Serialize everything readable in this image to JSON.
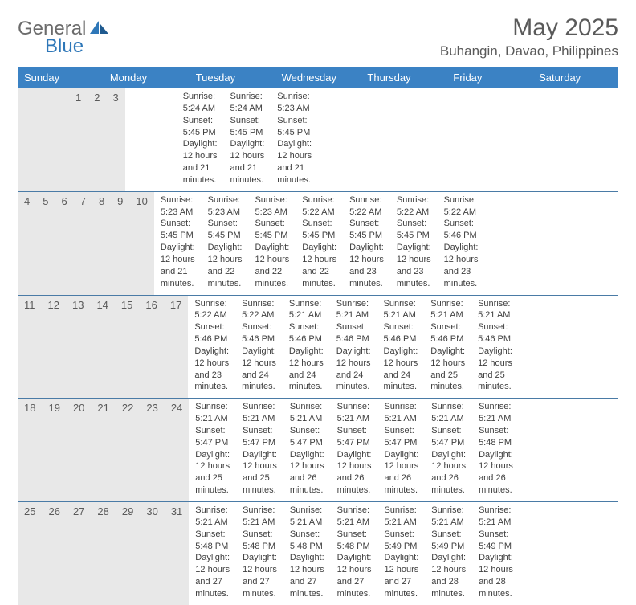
{
  "logo": {
    "text1": "General",
    "text2": "Blue"
  },
  "title": "May 2025",
  "location": "Buhangin, Davao, Philippines",
  "colors": {
    "header_bg": "#3b82c4",
    "daynum_bg": "#e8e8e8",
    "week_border": "#4a7ba6",
    "logo_blue": "#2e77b8",
    "logo_gray": "#6b6b6b",
    "text": "#404040"
  },
  "daynames": [
    "Sunday",
    "Monday",
    "Tuesday",
    "Wednesday",
    "Thursday",
    "Friday",
    "Saturday"
  ],
  "weeks": [
    {
      "nums": [
        "",
        "",
        "",
        "",
        "1",
        "2",
        "3"
      ],
      "cells": [
        null,
        null,
        null,
        null,
        {
          "sunrise": "Sunrise: 5:24 AM",
          "sunset": "Sunset: 5:45 PM",
          "day1": "Daylight: 12 hours",
          "day2": "and 21 minutes."
        },
        {
          "sunrise": "Sunrise: 5:24 AM",
          "sunset": "Sunset: 5:45 PM",
          "day1": "Daylight: 12 hours",
          "day2": "and 21 minutes."
        },
        {
          "sunrise": "Sunrise: 5:23 AM",
          "sunset": "Sunset: 5:45 PM",
          "day1": "Daylight: 12 hours",
          "day2": "and 21 minutes."
        }
      ]
    },
    {
      "nums": [
        "4",
        "5",
        "6",
        "7",
        "8",
        "9",
        "10"
      ],
      "cells": [
        {
          "sunrise": "Sunrise: 5:23 AM",
          "sunset": "Sunset: 5:45 PM",
          "day1": "Daylight: 12 hours",
          "day2": "and 21 minutes."
        },
        {
          "sunrise": "Sunrise: 5:23 AM",
          "sunset": "Sunset: 5:45 PM",
          "day1": "Daylight: 12 hours",
          "day2": "and 22 minutes."
        },
        {
          "sunrise": "Sunrise: 5:23 AM",
          "sunset": "Sunset: 5:45 PM",
          "day1": "Daylight: 12 hours",
          "day2": "and 22 minutes."
        },
        {
          "sunrise": "Sunrise: 5:22 AM",
          "sunset": "Sunset: 5:45 PM",
          "day1": "Daylight: 12 hours",
          "day2": "and 22 minutes."
        },
        {
          "sunrise": "Sunrise: 5:22 AM",
          "sunset": "Sunset: 5:45 PM",
          "day1": "Daylight: 12 hours",
          "day2": "and 23 minutes."
        },
        {
          "sunrise": "Sunrise: 5:22 AM",
          "sunset": "Sunset: 5:45 PM",
          "day1": "Daylight: 12 hours",
          "day2": "and 23 minutes."
        },
        {
          "sunrise": "Sunrise: 5:22 AM",
          "sunset": "Sunset: 5:46 PM",
          "day1": "Daylight: 12 hours",
          "day2": "and 23 minutes."
        }
      ]
    },
    {
      "nums": [
        "11",
        "12",
        "13",
        "14",
        "15",
        "16",
        "17"
      ],
      "cells": [
        {
          "sunrise": "Sunrise: 5:22 AM",
          "sunset": "Sunset: 5:46 PM",
          "day1": "Daylight: 12 hours",
          "day2": "and 23 minutes."
        },
        {
          "sunrise": "Sunrise: 5:22 AM",
          "sunset": "Sunset: 5:46 PM",
          "day1": "Daylight: 12 hours",
          "day2": "and 24 minutes."
        },
        {
          "sunrise": "Sunrise: 5:21 AM",
          "sunset": "Sunset: 5:46 PM",
          "day1": "Daylight: 12 hours",
          "day2": "and 24 minutes."
        },
        {
          "sunrise": "Sunrise: 5:21 AM",
          "sunset": "Sunset: 5:46 PM",
          "day1": "Daylight: 12 hours",
          "day2": "and 24 minutes."
        },
        {
          "sunrise": "Sunrise: 5:21 AM",
          "sunset": "Sunset: 5:46 PM",
          "day1": "Daylight: 12 hours",
          "day2": "and 24 minutes."
        },
        {
          "sunrise": "Sunrise: 5:21 AM",
          "sunset": "Sunset: 5:46 PM",
          "day1": "Daylight: 12 hours",
          "day2": "and 25 minutes."
        },
        {
          "sunrise": "Sunrise: 5:21 AM",
          "sunset": "Sunset: 5:46 PM",
          "day1": "Daylight: 12 hours",
          "day2": "and 25 minutes."
        }
      ]
    },
    {
      "nums": [
        "18",
        "19",
        "20",
        "21",
        "22",
        "23",
        "24"
      ],
      "cells": [
        {
          "sunrise": "Sunrise: 5:21 AM",
          "sunset": "Sunset: 5:47 PM",
          "day1": "Daylight: 12 hours",
          "day2": "and 25 minutes."
        },
        {
          "sunrise": "Sunrise: 5:21 AM",
          "sunset": "Sunset: 5:47 PM",
          "day1": "Daylight: 12 hours",
          "day2": "and 25 minutes."
        },
        {
          "sunrise": "Sunrise: 5:21 AM",
          "sunset": "Sunset: 5:47 PM",
          "day1": "Daylight: 12 hours",
          "day2": "and 26 minutes."
        },
        {
          "sunrise": "Sunrise: 5:21 AM",
          "sunset": "Sunset: 5:47 PM",
          "day1": "Daylight: 12 hours",
          "day2": "and 26 minutes."
        },
        {
          "sunrise": "Sunrise: 5:21 AM",
          "sunset": "Sunset: 5:47 PM",
          "day1": "Daylight: 12 hours",
          "day2": "and 26 minutes."
        },
        {
          "sunrise": "Sunrise: 5:21 AM",
          "sunset": "Sunset: 5:47 PM",
          "day1": "Daylight: 12 hours",
          "day2": "and 26 minutes."
        },
        {
          "sunrise": "Sunrise: 5:21 AM",
          "sunset": "Sunset: 5:48 PM",
          "day1": "Daylight: 12 hours",
          "day2": "and 26 minutes."
        }
      ]
    },
    {
      "nums": [
        "25",
        "26",
        "27",
        "28",
        "29",
        "30",
        "31"
      ],
      "cells": [
        {
          "sunrise": "Sunrise: 5:21 AM",
          "sunset": "Sunset: 5:48 PM",
          "day1": "Daylight: 12 hours",
          "day2": "and 27 minutes."
        },
        {
          "sunrise": "Sunrise: 5:21 AM",
          "sunset": "Sunset: 5:48 PM",
          "day1": "Daylight: 12 hours",
          "day2": "and 27 minutes."
        },
        {
          "sunrise": "Sunrise: 5:21 AM",
          "sunset": "Sunset: 5:48 PM",
          "day1": "Daylight: 12 hours",
          "day2": "and 27 minutes."
        },
        {
          "sunrise": "Sunrise: 5:21 AM",
          "sunset": "Sunset: 5:48 PM",
          "day1": "Daylight: 12 hours",
          "day2": "and 27 minutes."
        },
        {
          "sunrise": "Sunrise: 5:21 AM",
          "sunset": "Sunset: 5:49 PM",
          "day1": "Daylight: 12 hours",
          "day2": "and 27 minutes."
        },
        {
          "sunrise": "Sunrise: 5:21 AM",
          "sunset": "Sunset: 5:49 PM",
          "day1": "Daylight: 12 hours",
          "day2": "and 28 minutes."
        },
        {
          "sunrise": "Sunrise: 5:21 AM",
          "sunset": "Sunset: 5:49 PM",
          "day1": "Daylight: 12 hours",
          "day2": "and 28 minutes."
        }
      ]
    }
  ]
}
